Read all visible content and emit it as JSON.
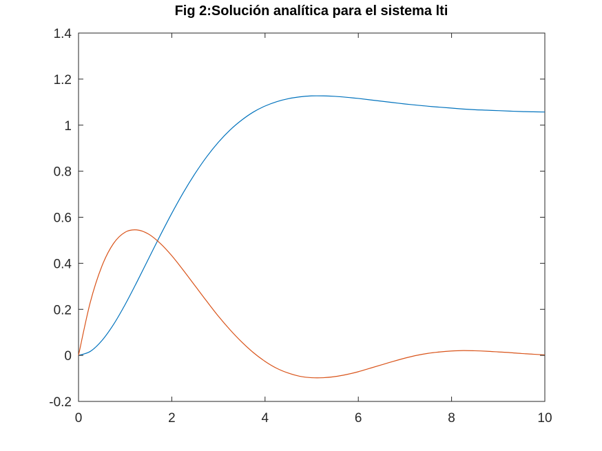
{
  "chart_data": {
    "type": "line",
    "title": "Fig 2:Solución analítica para el sistema lti",
    "xlabel": "",
    "ylabel": "",
    "xlim": [
      0,
      10
    ],
    "ylim": [
      -0.2,
      1.4
    ],
    "x_ticks": [
      "0",
      "2",
      "4",
      "6",
      "8",
      "10"
    ],
    "y_ticks": [
      "-0.2",
      "0",
      "0.2",
      "0.4",
      "0.6",
      "0.8",
      "1",
      "1.2",
      "1.4"
    ],
    "grid": false,
    "legend": false,
    "series": [
      {
        "color": "#0072bd",
        "x": [
          0,
          0.25,
          0.5,
          0.75,
          1.0,
          1.25,
          1.5,
          1.75,
          2.0,
          2.25,
          2.5,
          2.75,
          3.0,
          3.25,
          3.5,
          3.75,
          4.0,
          4.25,
          4.5,
          4.75,
          5.0,
          5.25,
          5.5,
          5.75,
          6.0,
          6.25,
          6.5,
          6.75,
          7.0,
          7.25,
          7.5,
          7.75,
          8.0,
          8.25,
          8.5,
          8.75,
          9.0,
          9.25,
          9.5,
          9.75,
          10.0
        ],
        "y": [
          0,
          0.017,
          0.064,
          0.134,
          0.221,
          0.318,
          0.419,
          0.52,
          0.617,
          0.708,
          0.79,
          0.863,
          0.926,
          0.979,
          1.022,
          1.057,
          1.083,
          1.102,
          1.115,
          1.123,
          1.127,
          1.127,
          1.125,
          1.121,
          1.116,
          1.11,
          1.104,
          1.098,
          1.092,
          1.087,
          1.082,
          1.078,
          1.074,
          1.07,
          1.067,
          1.065,
          1.063,
          1.061,
          1.059,
          1.058,
          1.057
        ]
      },
      {
        "color": "#d95319",
        "x": [
          0,
          0.25,
          0.5,
          0.75,
          1.0,
          1.25,
          1.5,
          1.75,
          2.0,
          2.25,
          2.5,
          2.75,
          3.0,
          3.25,
          3.5,
          3.75,
          4.0,
          4.25,
          4.5,
          4.75,
          5.0,
          5.25,
          5.5,
          5.75,
          6.0,
          6.25,
          6.5,
          6.75,
          7.0,
          7.25,
          7.5,
          7.75,
          8.0,
          8.25,
          8.5,
          8.75,
          9.0,
          9.25,
          9.5,
          9.75,
          10.0
        ],
        "y": [
          0,
          0.229,
          0.387,
          0.486,
          0.535,
          0.545,
          0.527,
          0.487,
          0.433,
          0.369,
          0.302,
          0.235,
          0.17,
          0.111,
          0.058,
          0.012,
          -0.026,
          -0.056,
          -0.077,
          -0.091,
          -0.097,
          -0.097,
          -0.092,
          -0.083,
          -0.071,
          -0.056,
          -0.041,
          -0.026,
          -0.012,
          0.0,
          0.009,
          0.015,
          0.019,
          0.021,
          0.02,
          0.018,
          0.015,
          0.012,
          0.008,
          0.005,
          0.002
        ]
      }
    ]
  }
}
